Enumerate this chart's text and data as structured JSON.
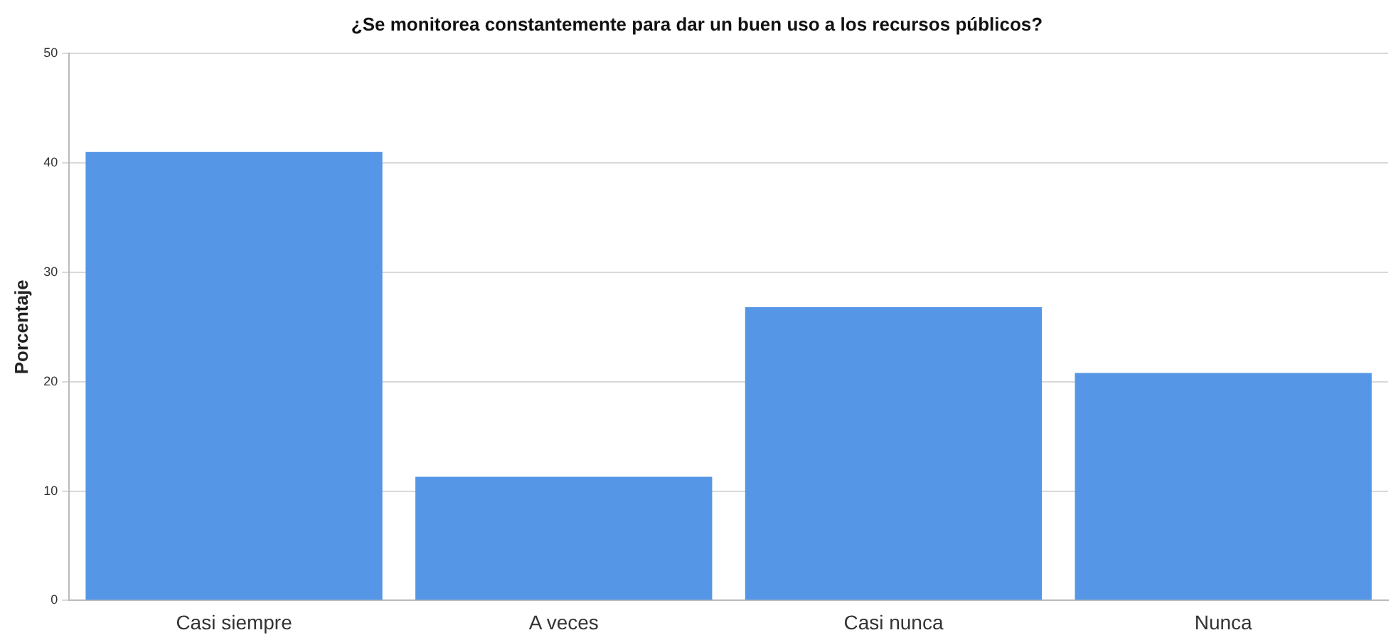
{
  "chart_data": {
    "type": "bar",
    "title": "¿Se monitorea constantemente para dar un buen uso a los recursos públicos?",
    "ylabel": "Porcentaje",
    "categories": [
      "Casi siempre",
      "A veces",
      "Casi nunca",
      "Nunca"
    ],
    "values": [
      41,
      11.3,
      26.8,
      20.8
    ],
    "color": "#5596e6",
    "ylim": [
      0,
      50
    ],
    "yticks": [
      0,
      10,
      20,
      30,
      40,
      50
    ],
    "grid": "y"
  }
}
